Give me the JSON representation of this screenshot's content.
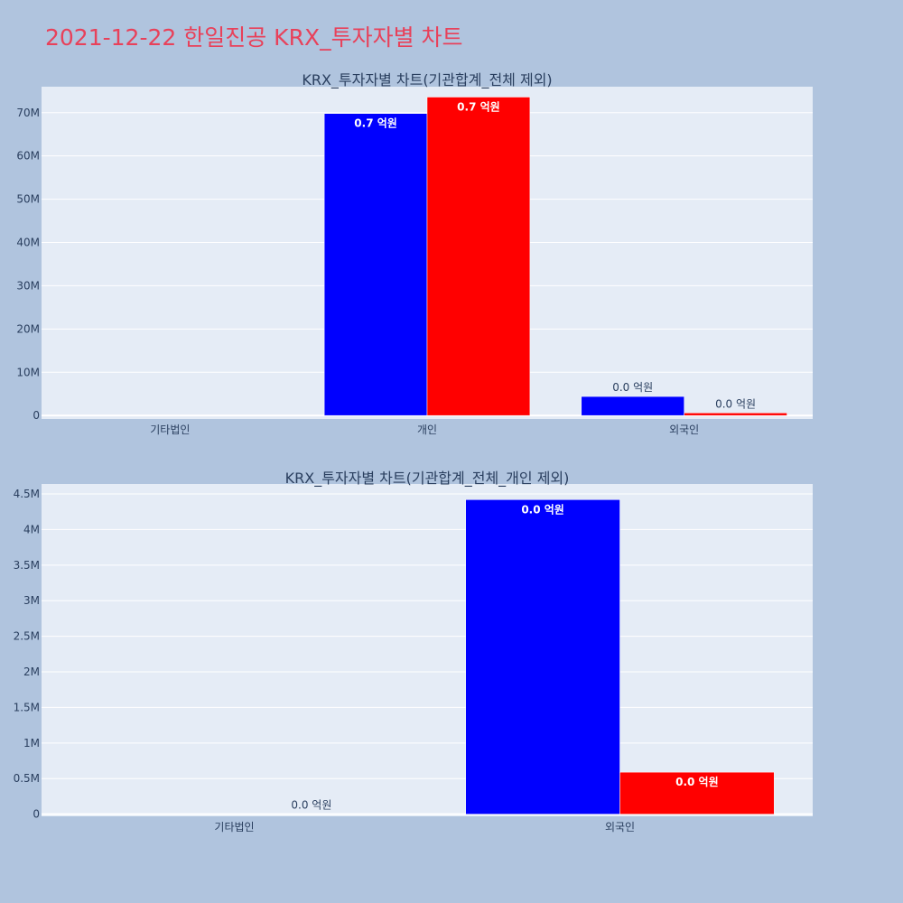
{
  "page_title": "2021-12-22 한일진공 KRX_투자자별 차트",
  "colors": {
    "background": "#b0c4de",
    "plot_bg": "#e5ecf6",
    "title": "#e8415a",
    "series_a": "#0000ff",
    "series_b": "#ff0000"
  },
  "chart_data": [
    {
      "type": "bar",
      "title": "KRX_투자자별 차트(기관합계_전체 제외)",
      "categories": [
        "기타법인",
        "개인",
        "외국인"
      ],
      "series": [
        {
          "color": "#0000ff",
          "values": [
            0,
            69800000,
            4400000
          ],
          "labels": [
            "",
            "0.7 억원",
            "0.0 억원"
          ]
        },
        {
          "color": "#ff0000",
          "values": [
            0,
            73600000,
            600000
          ],
          "labels": [
            "",
            "0.7 억원",
            "0.0 억원"
          ]
        }
      ],
      "ylim": [
        -800000,
        76000000
      ],
      "yticks": [
        0,
        10000000,
        20000000,
        30000000,
        40000000,
        50000000,
        60000000,
        70000000
      ],
      "ytick_labels": [
        "0",
        "10M",
        "20M",
        "30M",
        "40M",
        "50M",
        "60M",
        "70M"
      ],
      "grid": true
    },
    {
      "type": "bar",
      "title": "KRX_투자자별 차트(기관합계_전체_개인 제외)",
      "categories": [
        "기타법인",
        "외국인"
      ],
      "series": [
        {
          "color": "#0000ff",
          "values": [
            0,
            4420000
          ],
          "labels": [
            "",
            "0.0 억원"
          ]
        },
        {
          "color": "#ff0000",
          "values": [
            0,
            590000
          ],
          "labels": [
            "0.0 억원",
            "0.0 억원"
          ]
        }
      ],
      "ylim": [
        -30000,
        4640000
      ],
      "yticks": [
        0,
        500000,
        1000000,
        1500000,
        2000000,
        2500000,
        3000000,
        3500000,
        4000000,
        4500000
      ],
      "ytick_labels": [
        "0",
        "0.5M",
        "1M",
        "1.5M",
        "2M",
        "2.5M",
        "3M",
        "3.5M",
        "4M",
        "4.5M"
      ],
      "grid": true
    }
  ]
}
